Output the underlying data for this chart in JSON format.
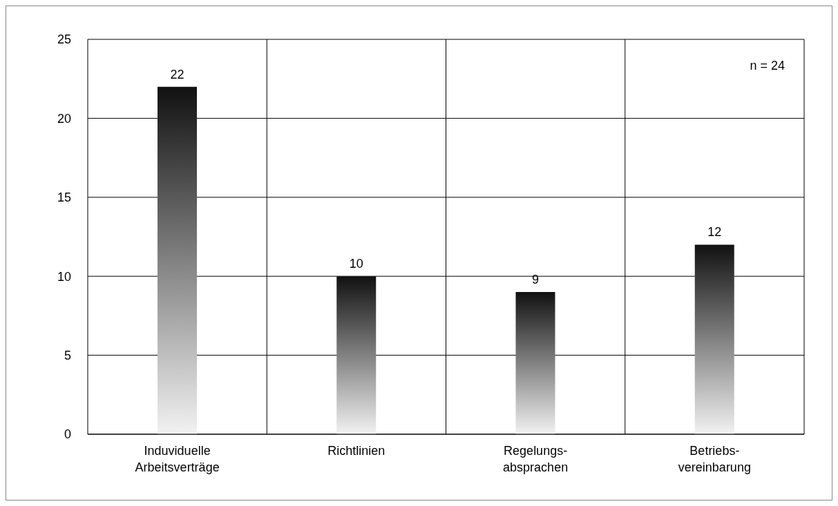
{
  "chart_data": {
    "type": "bar",
    "categories": [
      "Induviduelle\nArbeitsverträge",
      "Richtlinien",
      "Regelungs-\nabsprachen",
      "Betriebs-\nvereinbarung"
    ],
    "values": [
      22,
      10,
      9,
      12
    ],
    "color": "#111111",
    "ylim": [
      0,
      25
    ],
    "yticks": [
      0,
      5,
      10,
      15,
      20,
      25
    ],
    "grid": true,
    "data_labels": true,
    "annotations": [
      "n = 24"
    ]
  }
}
